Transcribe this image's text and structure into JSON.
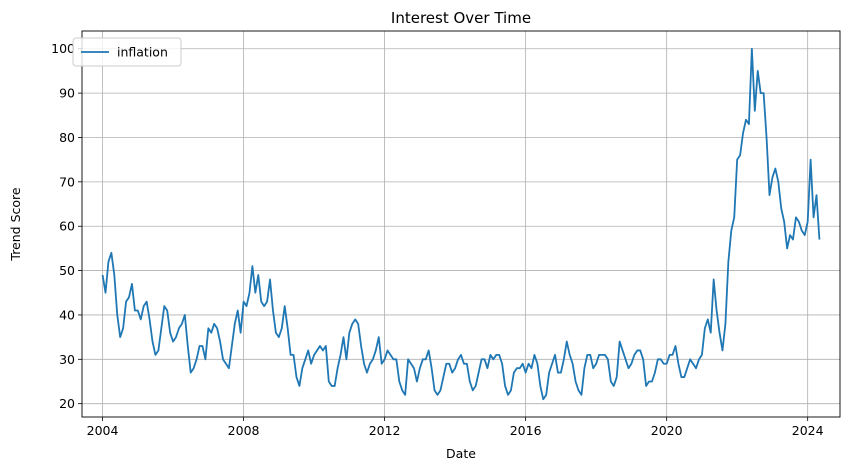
{
  "chart_data": {
    "type": "line",
    "title": "Interest Over Time",
    "xlabel": "Date",
    "ylabel": "Trend Score",
    "grid": true,
    "legend": "top-left",
    "x_start": "2004-01",
    "x_step": "monthly",
    "xlim": [
      "2003-06",
      "2024-12"
    ],
    "ylim": [
      17,
      104
    ],
    "x_ticks": [
      "2004",
      "2008",
      "2012",
      "2016",
      "2020",
      "2024"
    ],
    "y_ticks": [
      20,
      30,
      40,
      50,
      60,
      70,
      80,
      90,
      100
    ],
    "series": [
      {
        "name": "inflation",
        "color": "#1f77b4",
        "values": [
          49,
          45,
          52,
          54,
          49,
          40,
          35,
          37,
          43,
          44,
          47,
          41,
          41,
          39,
          42,
          43,
          39,
          34,
          31,
          32,
          37,
          42,
          41,
          36,
          34,
          35,
          37,
          38,
          40,
          33,
          27,
          28,
          30,
          33,
          33,
          30,
          37,
          36,
          38,
          37,
          34,
          30,
          29,
          28,
          33,
          38,
          41,
          36,
          43,
          42,
          45,
          51,
          45,
          49,
          43,
          42,
          43,
          48,
          41,
          36,
          35,
          37,
          42,
          37,
          31,
          31,
          26,
          24,
          28,
          30,
          32,
          29,
          31,
          32,
          33,
          32,
          33,
          25,
          24,
          24,
          28,
          31,
          35,
          30,
          36,
          38,
          39,
          38,
          33,
          29,
          27,
          29,
          30,
          32,
          35,
          29,
          30,
          32,
          31,
          30,
          30,
          25,
          23,
          22,
          30,
          29,
          28,
          25,
          28,
          30,
          30,
          32,
          28,
          23,
          22,
          23,
          26,
          29,
          29,
          27,
          28,
          30,
          31,
          29,
          29,
          25,
          23,
          24,
          27,
          30,
          30,
          28,
          31,
          30,
          31,
          31,
          29,
          24,
          22,
          23,
          27,
          28,
          28,
          29,
          27,
          29,
          28,
          31,
          29,
          24,
          21,
          22,
          27,
          29,
          31,
          27,
          27,
          30,
          34,
          31,
          29,
          25,
          23,
          22,
          28,
          31,
          31,
          28,
          29,
          31,
          31,
          31,
          30,
          25,
          24,
          26,
          34,
          32,
          30,
          28,
          29,
          31,
          32,
          32,
          30,
          24,
          25,
          25,
          27,
          30,
          30,
          29,
          29,
          31,
          31,
          33,
          29,
          26,
          26,
          28,
          30,
          29,
          28,
          30,
          31,
          37,
          39,
          36,
          48,
          41,
          36,
          32,
          38,
          52,
          59,
          62,
          75,
          76,
          81,
          84,
          83,
          100,
          86,
          95,
          90,
          90,
          80,
          67,
          71,
          73,
          70,
          64,
          61,
          55,
          58,
          57,
          62,
          61,
          59,
          58,
          61,
          75,
          62,
          67,
          57
        ]
      }
    ]
  }
}
